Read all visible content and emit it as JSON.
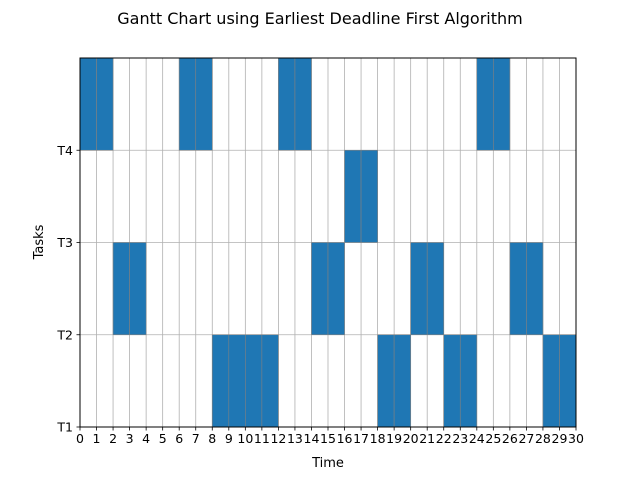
{
  "chart_data": {
    "type": "gantt",
    "title": "Gantt Chart using Earliest Deadline First Algorithm",
    "xlabel": "Time",
    "ylabel": "Tasks",
    "xlim": [
      0,
      30
    ],
    "ylim": [
      0,
      4
    ],
    "x_ticks": [
      "0",
      "1",
      "2",
      "3",
      "4",
      "5",
      "6",
      "7",
      "8",
      "9",
      "10",
      "11",
      "12",
      "13",
      "14",
      "15",
      "16",
      "17",
      "18",
      "19",
      "20",
      "21",
      "22",
      "23",
      "24",
      "25",
      "26",
      "27",
      "28",
      "29",
      "30"
    ],
    "y_ticks": [
      {
        "value": 0,
        "label": "T1"
      },
      {
        "value": 1,
        "label": "T2"
      },
      {
        "value": 2,
        "label": "T3"
      },
      {
        "value": 3,
        "label": "T4"
      }
    ],
    "grid": true,
    "bar_color": "#1f77b4",
    "bars": [
      {
        "start": 0,
        "end": 1,
        "y0": 3,
        "y1": 4
      },
      {
        "start": 1,
        "end": 2,
        "y0": 3,
        "y1": 4
      },
      {
        "start": 2,
        "end": 3,
        "y0": 1,
        "y1": 2
      },
      {
        "start": 3,
        "end": 4,
        "y0": 1,
        "y1": 2
      },
      {
        "start": 6,
        "end": 7,
        "y0": 3,
        "y1": 4
      },
      {
        "start": 7,
        "end": 8,
        "y0": 3,
        "y1": 4
      },
      {
        "start": 8,
        "end": 9,
        "y0": 0,
        "y1": 1
      },
      {
        "start": 9,
        "end": 10,
        "y0": 0,
        "y1": 1
      },
      {
        "start": 10,
        "end": 11,
        "y0": 0,
        "y1": 1
      },
      {
        "start": 11,
        "end": 12,
        "y0": 0,
        "y1": 1
      },
      {
        "start": 12,
        "end": 13,
        "y0": 3,
        "y1": 4
      },
      {
        "start": 13,
        "end": 14,
        "y0": 3,
        "y1": 4
      },
      {
        "start": 14,
        "end": 15,
        "y0": 1,
        "y1": 2
      },
      {
        "start": 15,
        "end": 16,
        "y0": 1,
        "y1": 2
      },
      {
        "start": 16,
        "end": 17,
        "y0": 2,
        "y1": 3
      },
      {
        "start": 17,
        "end": 18,
        "y0": 2,
        "y1": 3
      },
      {
        "start": 18,
        "end": 19,
        "y0": 0,
        "y1": 1
      },
      {
        "start": 19,
        "end": 20,
        "y0": 0,
        "y1": 1
      },
      {
        "start": 20,
        "end": 21,
        "y0": 1,
        "y1": 2
      },
      {
        "start": 21,
        "end": 22,
        "y0": 1,
        "y1": 2
      },
      {
        "start": 22,
        "end": 23,
        "y0": 0,
        "y1": 1
      },
      {
        "start": 23,
        "end": 24,
        "y0": 0,
        "y1": 1
      },
      {
        "start": 24,
        "end": 25,
        "y0": 3,
        "y1": 4
      },
      {
        "start": 25,
        "end": 26,
        "y0": 3,
        "y1": 4
      },
      {
        "start": 26,
        "end": 27,
        "y0": 1,
        "y1": 2
      },
      {
        "start": 27,
        "end": 28,
        "y0": 1,
        "y1": 2
      },
      {
        "start": 28,
        "end": 29,
        "y0": 0,
        "y1": 1
      },
      {
        "start": 29,
        "end": 30,
        "y0": 0,
        "y1": 1
      }
    ]
  }
}
